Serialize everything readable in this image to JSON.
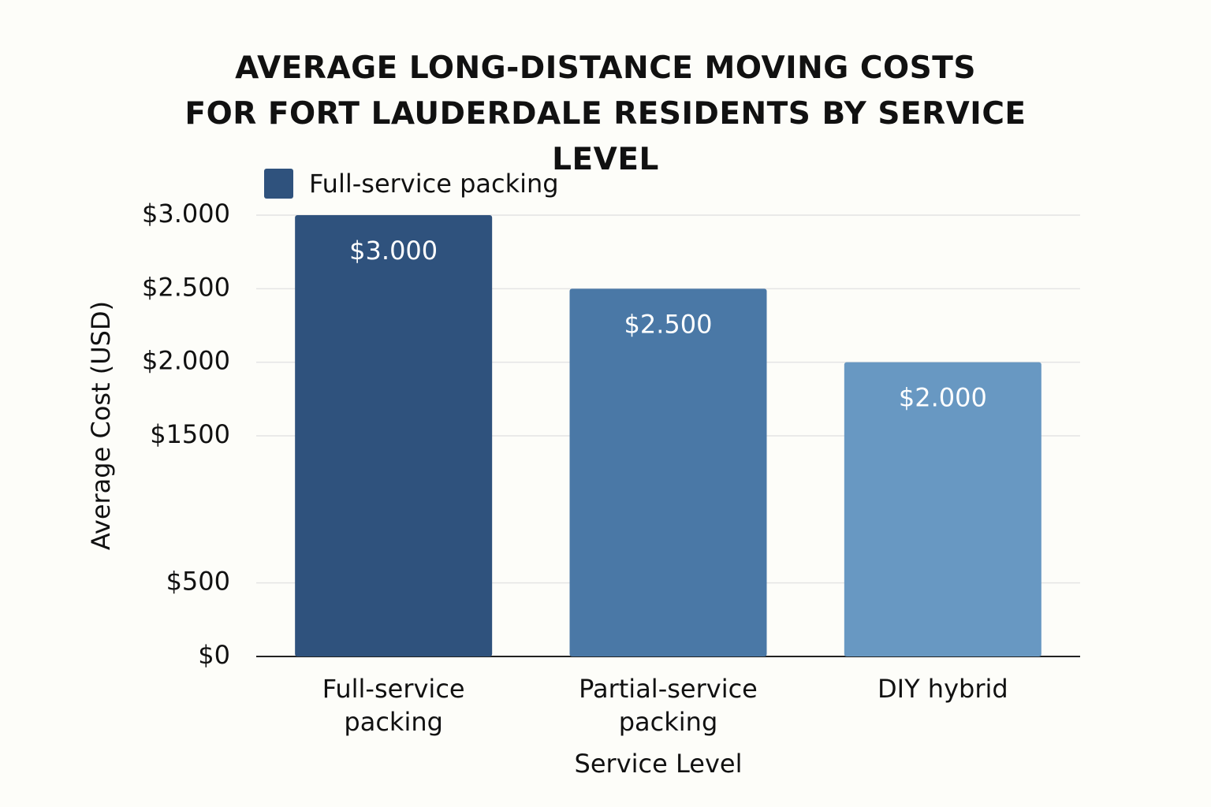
{
  "chart_data": {
    "type": "bar",
    "title": "AVERAGE LONG-DISTANCE MOVING COSTS\nFOR FORT LAUDERDALE RESIDENTS BY SERVICE LEVEL",
    "x_label": "Service Level",
    "y_label": "Average Cost (USD)",
    "categories": [
      "Full-service packing",
      "Partial-service packing",
      "DIY hybrid"
    ],
    "series": [
      {
        "name": "Full-service packing",
        "color": "#2f527d",
        "values": [
          3000,
          2500,
          2000
        ],
        "value_labels": [
          "$3.000",
          "$2.500",
          "$2.000"
        ],
        "bar_colors": [
          "#2f527d",
          "#4a78a6",
          "#6898c2"
        ]
      }
    ],
    "ylim": [
      0,
      3000
    ],
    "yticks": [
      {
        "value": 0,
        "label": "$0"
      },
      {
        "value": 500,
        "label": "$500"
      },
      {
        "value": 1500,
        "label": "$1500"
      },
      {
        "value": 2000,
        "label": "$2.000"
      },
      {
        "value": 2500,
        "label": "$2.500"
      },
      {
        "value": 3000,
        "label": "$3.000"
      }
    ],
    "grid": true
  }
}
